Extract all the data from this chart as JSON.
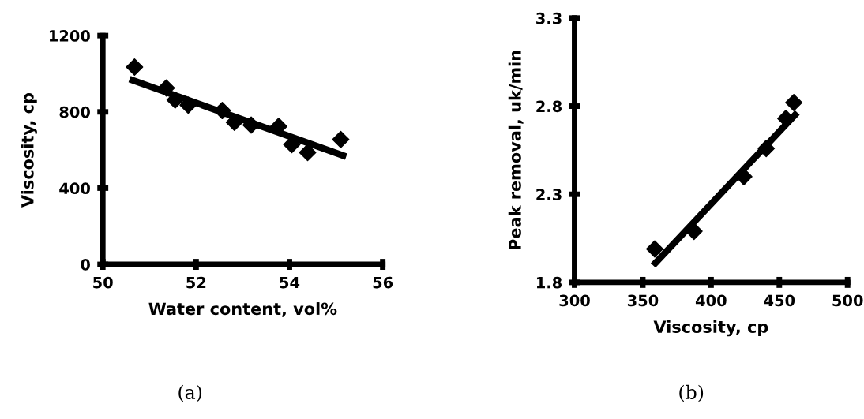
{
  "chart_data": [
    {
      "type": "scatter",
      "xlabel": "Water content, vol%",
      "ylabel": "Viscosity, cp",
      "xlim": [
        50,
        56
      ],
      "xticks": [
        50,
        52,
        54,
        56
      ],
      "ylim": [
        0,
        1200
      ],
      "yticks": [
        0,
        400,
        800,
        1200
      ],
      "grid": false,
      "legend": false,
      "marker": "diamond",
      "annotations": [
        "(a)"
      ],
      "series": [
        {
          "color": "#000000",
          "x": [
            50.68,
            51.36,
            51.55,
            51.83,
            52.56,
            52.82,
            53.18,
            53.77,
            54.05,
            54.39,
            55.1
          ],
          "values": [
            1035,
            925,
            862,
            835,
            807,
            745,
            731,
            724,
            628,
            587,
            655
          ]
        },
        {
          "type": "line",
          "color": "#000000",
          "marker": "none",
          "line_style": "solid",
          "x": [
            50.64,
            55.15
          ],
          "values": [
            966,
            571
          ]
        }
      ]
    },
    {
      "type": "scatter",
      "xlabel": "Viscosity, cp",
      "ylabel": "Peak removal, uk/min",
      "xlim": [
        300,
        500
      ],
      "xticks": [
        300,
        350,
        400,
        450,
        500
      ],
      "ylim": [
        1.8,
        3.3
      ],
      "yticks": [
        1.8,
        2.3,
        2.8,
        3.3
      ],
      "grid": false,
      "legend": false,
      "marker": "diamond",
      "annotations": [
        "(b)"
      ],
      "series": [
        {
          "color": "#000000",
          "x": [
            358.7,
            387.5,
            424,
            440.4,
            454.8,
            460.6
          ],
          "values": [
            1.99,
            2.09,
            2.4,
            2.56,
            2.73,
            2.82
          ]
        },
        {
          "type": "line",
          "color": "#000000",
          "marker": "none",
          "line_style": "solid",
          "x": [
            359.2,
            461.5
          ],
          "values": [
            1.91,
            2.75
          ]
        }
      ]
    }
  ]
}
